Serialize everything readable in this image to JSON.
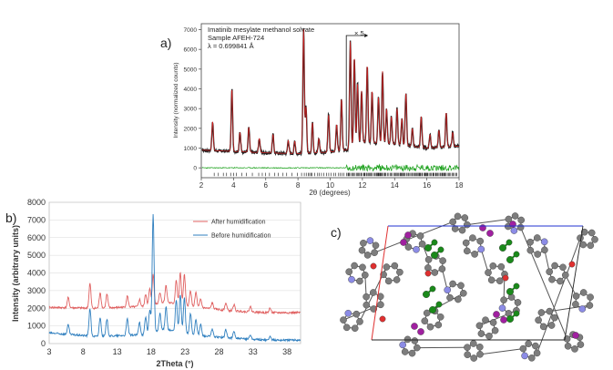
{
  "panels": {
    "a_label": "a)",
    "b_label": "b)",
    "c_label": "c)"
  },
  "chart_data": [
    {
      "type": "line",
      "panel": "a",
      "annotations": [
        "Imatinib mesylate methanol solvate",
        "Sample AFEH-724",
        "λ = 0.699841 Å",
        "× 5"
      ],
      "xlabel": "2θ (degrees)",
      "ylabel": "Intensity (normalized counts)",
      "xlim": [
        2,
        18
      ],
      "ylim": [
        -500,
        7300
      ],
      "xticks": [
        "2",
        "4",
        "6",
        "8",
        "10",
        "12",
        "14",
        "16",
        "18"
      ],
      "yticks": [
        "0",
        "1000",
        "2000",
        "3000",
        "4000",
        "5000",
        "6000",
        "7000"
      ],
      "zoom_start_x": 11,
      "colors": {
        "observed": "#222222",
        "calculated": "#d32020",
        "difference": "#1aa01a",
        "ticks": "#111111"
      },
      "baseline": [
        [
          2,
          900
        ],
        [
          4,
          830
        ],
        [
          6,
          760
        ],
        [
          8,
          720
        ],
        [
          10,
          800
        ],
        [
          11,
          900
        ],
        [
          12,
          1300
        ],
        [
          14,
          1200
        ],
        [
          16,
          1000
        ],
        [
          18,
          1100
        ]
      ],
      "peaks": [
        [
          2.7,
          2350
        ],
        [
          3.9,
          4000
        ],
        [
          4.4,
          1800
        ],
        [
          4.95,
          2050
        ],
        [
          5.6,
          1500
        ],
        [
          6.45,
          1700
        ],
        [
          7.4,
          1400
        ],
        [
          7.8,
          1350
        ],
        [
          8.35,
          7000
        ],
        [
          8.5,
          3100
        ],
        [
          8.9,
          2300
        ],
        [
          9.3,
          1500
        ],
        [
          9.9,
          2700
        ],
        [
          10.4,
          2200
        ],
        [
          10.7,
          3500
        ],
        [
          11.25,
          6400
        ],
        [
          11.5,
          5600
        ],
        [
          11.7,
          4300
        ],
        [
          11.95,
          3900
        ],
        [
          12.3,
          5200
        ],
        [
          12.6,
          3900
        ],
        [
          13.0,
          3600
        ],
        [
          13.25,
          4900
        ],
        [
          13.5,
          3000
        ],
        [
          13.8,
          2600
        ],
        [
          14.15,
          3000
        ],
        [
          14.45,
          2500
        ],
        [
          14.7,
          3800
        ],
        [
          15.1,
          2000
        ],
        [
          15.65,
          2600
        ],
        [
          16.2,
          1700
        ],
        [
          16.75,
          1900
        ],
        [
          17.2,
          2800
        ],
        [
          17.6,
          1800
        ]
      ],
      "difference_level": 0
    },
    {
      "type": "line",
      "panel": "b",
      "xlabel": "2Theta (°)",
      "ylabel": "Intensity (arbitrary units)",
      "xlim": [
        3,
        40
      ],
      "ylim": [
        0,
        8000
      ],
      "xticks": [
        "3",
        "8",
        "13",
        "18",
        "23",
        "28",
        "33",
        "38"
      ],
      "yticks": [
        "0",
        "1000",
        "2000",
        "3000",
        "4000",
        "5000",
        "6000",
        "7000",
        "8000"
      ],
      "series": [
        {
          "name": "After humidification",
          "color": "#e06060",
          "baseline": [
            [
              3,
              2050
            ],
            [
              10,
              2000
            ],
            [
              17,
              2100
            ],
            [
              20,
              2350
            ],
            [
              25,
              2050
            ],
            [
              30,
              1850
            ],
            [
              35,
              1750
            ],
            [
              40,
              1750
            ]
          ],
          "peaks": [
            [
              5.8,
              2600
            ],
            [
              9.0,
              3400
            ],
            [
              10.5,
              2900
            ],
            [
              11.5,
              2800
            ],
            [
              14.5,
              2700
            ],
            [
              16.3,
              2500
            ],
            [
              17.2,
              2800
            ],
            [
              17.8,
              3100
            ],
            [
              18.3,
              3900
            ],
            [
              19.3,
              2900
            ],
            [
              20.2,
              3300
            ],
            [
              21.7,
              3600
            ],
            [
              22.3,
              4000
            ],
            [
              22.9,
              3900
            ],
            [
              23.8,
              3000
            ],
            [
              24.6,
              2900
            ],
            [
              25.3,
              2500
            ],
            [
              27.0,
              2300
            ],
            [
              29.0,
              2300
            ],
            [
              30.2,
              2200
            ],
            [
              32.6,
              2100
            ],
            [
              35.5,
              2000
            ]
          ]
        },
        {
          "name": "Before humidification",
          "color": "#2f7fbf",
          "baseline": [
            [
              3,
              600
            ],
            [
              10,
              400
            ],
            [
              17,
              500
            ],
            [
              20,
              800
            ],
            [
              25,
              450
            ],
            [
              30,
              300
            ],
            [
              35,
              200
            ],
            [
              40,
              200
            ]
          ],
          "peaks": [
            [
              5.8,
              1050
            ],
            [
              9.0,
              2000
            ],
            [
              10.5,
              1500
            ],
            [
              11.5,
              1400
            ],
            [
              14.5,
              1400
            ],
            [
              16.3,
              1200
            ],
            [
              17.2,
              1500
            ],
            [
              17.8,
              1900
            ],
            [
              18.3,
              7300
            ],
            [
              19.3,
              1700
            ],
            [
              20.2,
              2100
            ],
            [
              21.7,
              2500
            ],
            [
              22.3,
              2800
            ],
            [
              22.9,
              2600
            ],
            [
              23.8,
              1700
            ],
            [
              24.6,
              1400
            ],
            [
              25.3,
              1100
            ],
            [
              27.0,
              800
            ],
            [
              29.0,
              800
            ],
            [
              30.2,
              700
            ],
            [
              32.6,
              500
            ],
            [
              35.5,
              400
            ]
          ]
        }
      ],
      "legend_position": "top-right"
    }
  ],
  "structure": {
    "colors": {
      "carbon": "#7d7d7d",
      "nitrogen": "#8c8ce6",
      "oxygen": "#e03030",
      "sulfur_group": "#1a8a1a",
      "solvent": "#a020a0",
      "cell_edge_a": "#e03030",
      "cell_edge_b": "#2030d0",
      "cell_edge": "#222222"
    }
  }
}
